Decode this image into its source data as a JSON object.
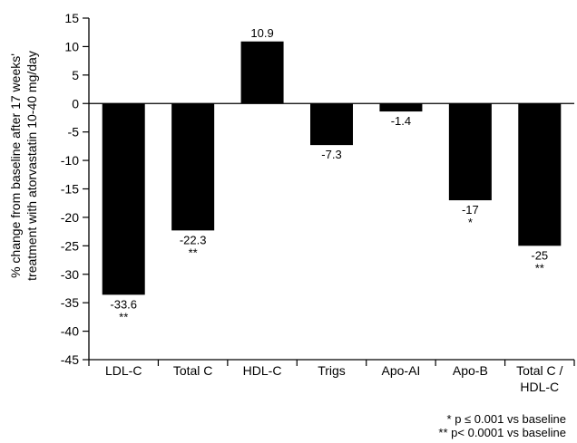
{
  "chart_data": {
    "type": "bar",
    "title": "",
    "ylabel_lines": [
      "% change from baseline after 17 weeks'",
      "treatment with atorvastatin 10-40 mg/day"
    ],
    "xlabel": "",
    "ylim": [
      -45,
      15
    ],
    "yticks": [
      15,
      10,
      5,
      0,
      -5,
      -10,
      -15,
      -20,
      -25,
      -30,
      -35,
      -40,
      -45
    ],
    "categories": [
      "LDL-C",
      "Total C",
      "HDL-C",
      "Trigs",
      "Apo-AI",
      "Apo-B",
      "Total C / HDL-C"
    ],
    "category_lines": [
      [
        "LDL-C"
      ],
      [
        "Total C"
      ],
      [
        "HDL-C"
      ],
      [
        "Trigs"
      ],
      [
        "Apo-AI"
      ],
      [
        "Apo-B"
      ],
      [
        "Total C /",
        "HDL-C"
      ]
    ],
    "values": [
      -33.6,
      -22.3,
      10.9,
      -7.3,
      -1.4,
      -17,
      -25
    ],
    "value_labels": [
      "-33.6",
      "-22.3",
      "10.9",
      "-7.3",
      "-1.4",
      "-17",
      "-25"
    ],
    "significance": [
      "**",
      "**",
      "",
      "",
      "",
      "*",
      "**"
    ],
    "bar_color": "#000000",
    "grid": false,
    "legend": "none"
  },
  "footnotes": {
    "line1": "* p ≤ 0.001 vs baseline",
    "line2": "** p< 0.0001 vs baseline"
  }
}
